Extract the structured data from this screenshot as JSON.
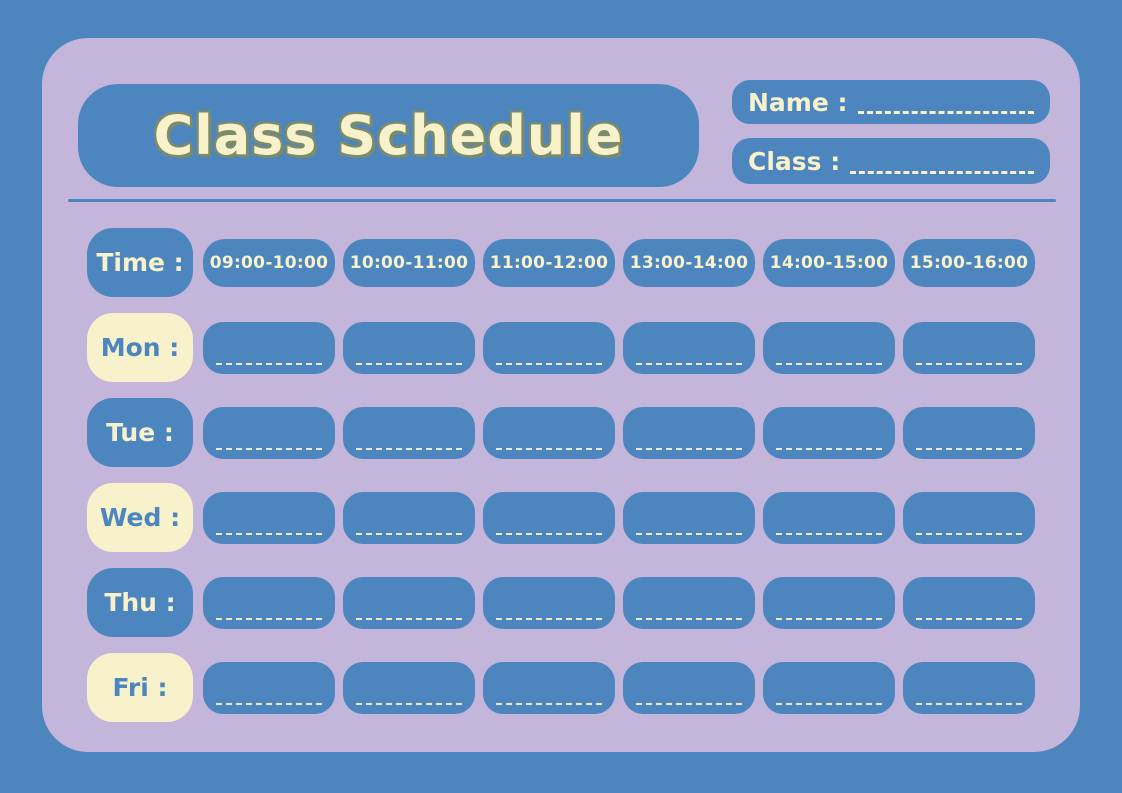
{
  "header": {
    "title": "Class Schedule",
    "name_field": {
      "label": "Name :",
      "value": ""
    },
    "class_field": {
      "label": "Class :",
      "value": ""
    }
  },
  "schedule": {
    "time_label": "Time :",
    "time_slots": [
      "09:00-10:00",
      "10:00-11:00",
      "11:00-12:00",
      "13:00-14:00",
      "14:00-15:00",
      "15:00-16:00"
    ],
    "days": [
      {
        "label": "Mon :",
        "cells": [
          "",
          "",
          "",
          "",
          "",
          ""
        ]
      },
      {
        "label": "Tue :",
        "cells": [
          "",
          "",
          "",
          "",
          "",
          ""
        ]
      },
      {
        "label": "Wed :",
        "cells": [
          "",
          "",
          "",
          "",
          "",
          ""
        ]
      },
      {
        "label": "Thu :",
        "cells": [
          "",
          "",
          "",
          "",
          "",
          ""
        ]
      },
      {
        "label": "Fri :",
        "cells": [
          "",
          "",
          "",
          "",
          "",
          ""
        ]
      }
    ]
  },
  "colors": {
    "background": "#4d86be",
    "card": "#c4b6da",
    "box_blue": "#4d86be",
    "cream": "#f7f2cc",
    "title_outline": "#7e8b69"
  }
}
